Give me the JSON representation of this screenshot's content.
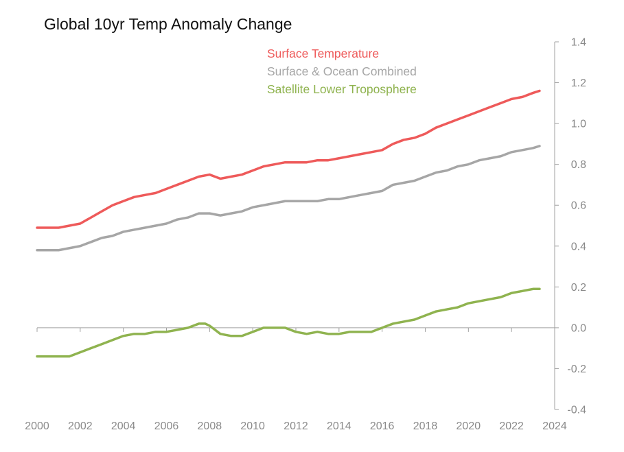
{
  "chart_data": {
    "type": "line",
    "title": "Global 10yr Temp Anomaly Change",
    "xlabel": "",
    "ylabel": "",
    "xlim": [
      2000,
      2024
    ],
    "ylim": [
      -0.4,
      1.4
    ],
    "x_ticks": [
      2000,
      2002,
      2004,
      2006,
      2008,
      2010,
      2012,
      2014,
      2016,
      2018,
      2020,
      2022,
      2024
    ],
    "y_ticks": [
      -0.4,
      -0.2,
      0.0,
      0.2,
      0.4,
      0.6,
      0.8,
      1.0,
      1.2,
      1.4
    ],
    "y_tick_labels": [
      "-0.4",
      "-0.2",
      "0.0",
      "0.2",
      "0.4",
      "0.6",
      "0.8",
      "1.0",
      "1.2",
      "1.4"
    ],
    "y_axis_side": "right",
    "grid": false,
    "legend_placement": "top-center",
    "series": [
      {
        "name": "Surface Temperature",
        "color": "#ee5a5a",
        "points": [
          [
            2000,
            0.49
          ],
          [
            2000.5,
            0.49
          ],
          [
            2001,
            0.49
          ],
          [
            2001.5,
            0.5
          ],
          [
            2002,
            0.51
          ],
          [
            2002.5,
            0.54
          ],
          [
            2003,
            0.57
          ],
          [
            2003.5,
            0.6
          ],
          [
            2004,
            0.62
          ],
          [
            2004.5,
            0.64
          ],
          [
            2005,
            0.65
          ],
          [
            2005.5,
            0.66
          ],
          [
            2006,
            0.68
          ],
          [
            2006.5,
            0.7
          ],
          [
            2007,
            0.72
          ],
          [
            2007.5,
            0.74
          ],
          [
            2008,
            0.75
          ],
          [
            2008.5,
            0.73
          ],
          [
            2009,
            0.74
          ],
          [
            2009.5,
            0.75
          ],
          [
            2010,
            0.77
          ],
          [
            2010.5,
            0.79
          ],
          [
            2011,
            0.8
          ],
          [
            2011.5,
            0.81
          ],
          [
            2012,
            0.81
          ],
          [
            2012.5,
            0.81
          ],
          [
            2013,
            0.82
          ],
          [
            2013.5,
            0.82
          ],
          [
            2014,
            0.83
          ],
          [
            2014.5,
            0.84
          ],
          [
            2015,
            0.85
          ],
          [
            2015.5,
            0.86
          ],
          [
            2016,
            0.87
          ],
          [
            2016.5,
            0.9
          ],
          [
            2017,
            0.92
          ],
          [
            2017.5,
            0.93
          ],
          [
            2018,
            0.95
          ],
          [
            2018.5,
            0.98
          ],
          [
            2019,
            1.0
          ],
          [
            2019.5,
            1.02
          ],
          [
            2020,
            1.04
          ],
          [
            2020.5,
            1.06
          ],
          [
            2021,
            1.08
          ],
          [
            2021.5,
            1.1
          ],
          [
            2022,
            1.12
          ],
          [
            2022.5,
            1.13
          ],
          [
            2023,
            1.15
          ],
          [
            2023.3,
            1.16
          ]
        ]
      },
      {
        "name": "Surface & Ocean Combined",
        "color": "#a6a6a6",
        "points": [
          [
            2000,
            0.38
          ],
          [
            2000.5,
            0.38
          ],
          [
            2001,
            0.38
          ],
          [
            2001.5,
            0.39
          ],
          [
            2002,
            0.4
          ],
          [
            2002.5,
            0.42
          ],
          [
            2003,
            0.44
          ],
          [
            2003.5,
            0.45
          ],
          [
            2004,
            0.47
          ],
          [
            2004.5,
            0.48
          ],
          [
            2005,
            0.49
          ],
          [
            2005.5,
            0.5
          ],
          [
            2006,
            0.51
          ],
          [
            2006.5,
            0.53
          ],
          [
            2007,
            0.54
          ],
          [
            2007.5,
            0.56
          ],
          [
            2008,
            0.56
          ],
          [
            2008.5,
            0.55
          ],
          [
            2009,
            0.56
          ],
          [
            2009.5,
            0.57
          ],
          [
            2010,
            0.59
          ],
          [
            2010.5,
            0.6
          ],
          [
            2011,
            0.61
          ],
          [
            2011.5,
            0.62
          ],
          [
            2012,
            0.62
          ],
          [
            2012.5,
            0.62
          ],
          [
            2013,
            0.62
          ],
          [
            2013.5,
            0.63
          ],
          [
            2014,
            0.63
          ],
          [
            2014.5,
            0.64
          ],
          [
            2015,
            0.65
          ],
          [
            2015.5,
            0.66
          ],
          [
            2016,
            0.67
          ],
          [
            2016.5,
            0.7
          ],
          [
            2017,
            0.71
          ],
          [
            2017.5,
            0.72
          ],
          [
            2018,
            0.74
          ],
          [
            2018.5,
            0.76
          ],
          [
            2019,
            0.77
          ],
          [
            2019.5,
            0.79
          ],
          [
            2020,
            0.8
          ],
          [
            2020.5,
            0.82
          ],
          [
            2021,
            0.83
          ],
          [
            2021.5,
            0.84
          ],
          [
            2022,
            0.86
          ],
          [
            2022.5,
            0.87
          ],
          [
            2023,
            0.88
          ],
          [
            2023.3,
            0.89
          ]
        ]
      },
      {
        "name": "Satellite Lower Troposphere",
        "color": "#8fb34f",
        "points": [
          [
            2000,
            -0.14
          ],
          [
            2000.5,
            -0.14
          ],
          [
            2001,
            -0.14
          ],
          [
            2001.5,
            -0.14
          ],
          [
            2002,
            -0.12
          ],
          [
            2002.5,
            -0.1
          ],
          [
            2003,
            -0.08
          ],
          [
            2003.5,
            -0.06
          ],
          [
            2004,
            -0.04
          ],
          [
            2004.5,
            -0.03
          ],
          [
            2005,
            -0.03
          ],
          [
            2005.5,
            -0.02
          ],
          [
            2006,
            -0.02
          ],
          [
            2006.5,
            -0.01
          ],
          [
            2007,
            0.0
          ],
          [
            2007.5,
            0.02
          ],
          [
            2007.8,
            0.02
          ],
          [
            2008,
            0.01
          ],
          [
            2008.5,
            -0.03
          ],
          [
            2009,
            -0.04
          ],
          [
            2009.5,
            -0.04
          ],
          [
            2010,
            -0.02
          ],
          [
            2010.5,
            0.0
          ],
          [
            2011,
            0.0
          ],
          [
            2011.5,
            0.0
          ],
          [
            2012,
            -0.02
          ],
          [
            2012.5,
            -0.03
          ],
          [
            2013,
            -0.02
          ],
          [
            2013.5,
            -0.03
          ],
          [
            2014,
            -0.03
          ],
          [
            2014.5,
            -0.02
          ],
          [
            2015,
            -0.02
          ],
          [
            2015.5,
            -0.02
          ],
          [
            2016,
            0.0
          ],
          [
            2016.5,
            0.02
          ],
          [
            2017,
            0.03
          ],
          [
            2017.5,
            0.04
          ],
          [
            2018,
            0.06
          ],
          [
            2018.5,
            0.08
          ],
          [
            2019,
            0.09
          ],
          [
            2019.5,
            0.1
          ],
          [
            2020,
            0.12
          ],
          [
            2020.5,
            0.13
          ],
          [
            2021,
            0.14
          ],
          [
            2021.5,
            0.15
          ],
          [
            2022,
            0.17
          ],
          [
            2022.5,
            0.18
          ],
          [
            2023,
            0.19
          ],
          [
            2023.3,
            0.19
          ]
        ]
      }
    ]
  }
}
